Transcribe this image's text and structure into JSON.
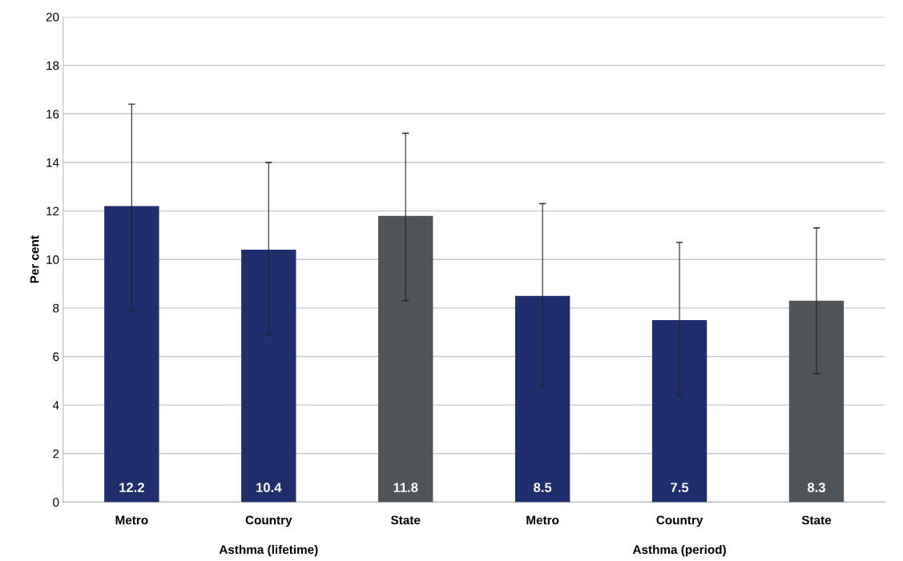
{
  "chart_data": {
    "type": "bar",
    "ylabel": "Per cent",
    "categories": [
      "Metro",
      "Country",
      "State",
      "Metro",
      "Country",
      "State"
    ],
    "values": [
      12.2,
      10.4,
      11.8,
      8.5,
      7.5,
      8.3
    ],
    "colors": [
      "#1f2f6e",
      "#1f2f6e",
      "#4f5459",
      "#1f2f6e",
      "#1f2f6e",
      "#4f5459"
    ],
    "errors": [
      [
        7.9,
        16.4
      ],
      [
        6.9,
        14.0
      ],
      [
        8.3,
        15.2
      ],
      [
        4.8,
        12.3
      ],
      [
        4.4,
        10.7
      ],
      [
        5.3,
        11.3
      ]
    ],
    "ylim": [
      0,
      20
    ],
    "yticks": [
      0,
      2,
      4,
      6,
      8,
      10,
      12,
      14,
      16,
      18,
      20
    ],
    "grid": "y",
    "data_labels": true,
    "annotations": [
      "Asthma (lifetime)",
      "Asthma (period)"
    ]
  }
}
